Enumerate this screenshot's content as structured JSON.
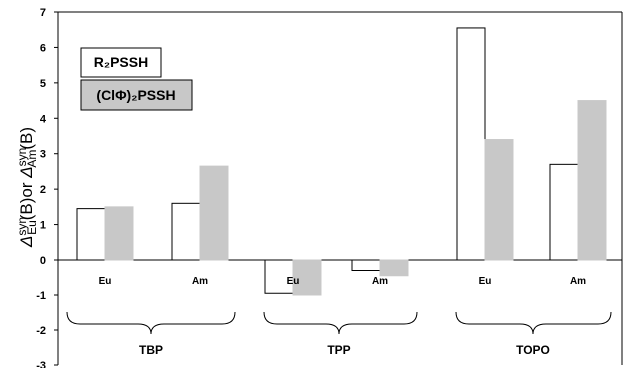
{
  "chart_data": {
    "type": "bar",
    "ylim": [
      -3,
      7
    ],
    "yticks": [
      -3,
      -2,
      -1,
      0,
      1,
      2,
      3,
      4,
      5,
      6,
      7
    ],
    "groups": [
      "TBP",
      "TPP",
      "TOPO"
    ],
    "categories": [
      "Eu",
      "Am",
      "Eu",
      "Am",
      "Eu",
      "Am"
    ],
    "series": [
      {
        "name": "R2PSSH",
        "color": "#ffffff",
        "values": [
          1.45,
          1.6,
          -0.95,
          -0.3,
          6.55,
          2.7
        ]
      },
      {
        "name": "(ClΦ)2PSSH",
        "color": "#c8c8c8",
        "values": [
          1.5,
          2.65,
          -1.0,
          -0.45,
          3.4,
          4.5
        ]
      }
    ],
    "legend": [
      {
        "label": "R₂PSSH"
      },
      {
        "label": "(ClΦ)₂PSSH"
      }
    ],
    "ylabel": {
      "part1": "Δ",
      "part2": "syn",
      "part3": "Eu",
      "part4": "(B)or ",
      "part5": "Δ",
      "part6": "syn",
      "part7": "Am",
      "part8": "(B)"
    }
  }
}
